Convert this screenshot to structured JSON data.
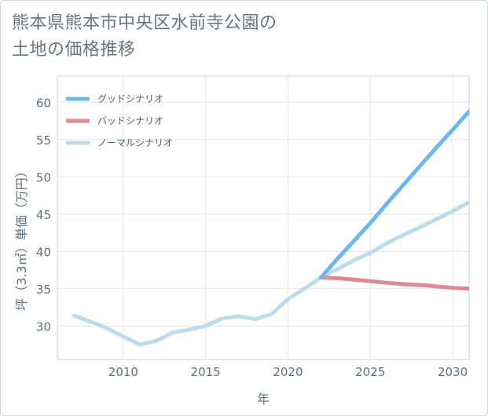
{
  "title_lines": [
    "熊本県熊本市中央区水前寺公園の",
    "土地の価格推移"
  ],
  "chart_data": {
    "type": "line",
    "xlabel": "年",
    "ylabel": "坪（3.3㎡）単価（万円）",
    "xlim": [
      2006,
      2031
    ],
    "ylim": [
      25.5,
      63.5
    ],
    "x_ticks": [
      2010,
      2015,
      2020,
      2025,
      2030
    ],
    "y_ticks": [
      30,
      35,
      40,
      45,
      50,
      55,
      60
    ],
    "grid": true,
    "legend_position": "top-left",
    "series": [
      {
        "name": "グッドシナリオ",
        "color": "#6bb8ec",
        "x": [
          2022,
          2023,
          2024,
          2025,
          2026,
          2027,
          2028,
          2029,
          2030,
          2031
        ],
        "values": [
          36.5,
          39.0,
          41.4,
          43.8,
          46.4,
          48.9,
          51.4,
          53.9,
          56.3,
          58.8
        ]
      },
      {
        "name": "バッドシナリオ",
        "color": "#de8a93",
        "x": [
          2022,
          2023,
          2024,
          2025,
          2026,
          2027,
          2028,
          2029,
          2030,
          2031
        ],
        "values": [
          36.5,
          36.4,
          36.2,
          36.0,
          35.8,
          35.6,
          35.5,
          35.3,
          35.1,
          35.0
        ]
      },
      {
        "name": "ノーマルシナリオ",
        "color": "#bcdcec",
        "x": [
          2007,
          2008,
          2009,
          2010,
          2011,
          2012,
          2013,
          2014,
          2015,
          2016,
          2017,
          2018,
          2019,
          2020,
          2021,
          2022,
          2023,
          2024,
          2025,
          2026,
          2027,
          2028,
          2029,
          2030,
          2031
        ],
        "values": [
          31.4,
          30.6,
          29.7,
          28.6,
          27.5,
          28.0,
          29.1,
          29.5,
          30.0,
          31.0,
          31.3,
          30.9,
          31.6,
          33.6,
          35.0,
          36.5,
          37.6,
          38.8,
          39.8,
          41.1,
          42.2,
          43.2,
          44.3,
          45.4,
          46.6
        ]
      }
    ]
  }
}
